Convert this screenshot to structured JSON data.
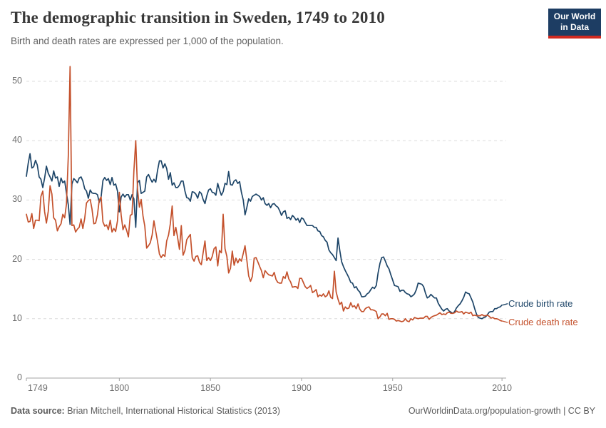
{
  "header": {
    "title": "The demographic transition in Sweden, 1749 to 2010",
    "subtitle": "Birth and death rates are expressed per 1,000 of the population.",
    "logo_line1": "Our World",
    "logo_line2": "in Data",
    "logo_bg_color": "#1d3d63",
    "logo_bar_color": "#d02a20"
  },
  "footer": {
    "source_label": "Data source:",
    "source_text": " Brian Mitchell, International Historical Statistics (2013)",
    "attribution": "OurWorldinData.org/population-growth | CC BY"
  },
  "chart_data": {
    "type": "line",
    "title": "The demographic transition in Sweden, 1749 to 2010",
    "xlabel": "",
    "ylabel": "",
    "x_start": 1749,
    "x_end": 2010,
    "ylim": [
      0,
      50
    ],
    "grid": "dashed-horizontal",
    "legend_position": "right-of-line-ends",
    "x_ticks": [
      1749,
      1800,
      1850,
      1900,
      1950,
      2010
    ],
    "y_ticks": [
      0,
      10,
      20,
      30,
      40,
      50
    ],
    "grid_color": "#dcdcdc",
    "axis_color": "#a3a3a3",
    "tick_text_color": "#6e6e6e",
    "series": [
      {
        "name": "Crude birth rate",
        "color": "#1d4568",
        "values": [
          34,
          36.2,
          37.8,
          35.4,
          35.6,
          36.7,
          35.9,
          33.9,
          33.5,
          32.1,
          33.7,
          35.7,
          34.5,
          33.9,
          33.2,
          34.9,
          33.7,
          33.9,
          32.3,
          33.7,
          32.9,
          33.2,
          31.2,
          29.2,
          25.9,
          32.7,
          33.6,
          33.3,
          32.9,
          33.7,
          33.9,
          33.2,
          31.9,
          31.5,
          30.3,
          31.7,
          31.2,
          31.1,
          31.1,
          30.9,
          29.6,
          30.5,
          33.3,
          33.8,
          33.3,
          33.6,
          32.6,
          33.8,
          32.5,
          32.7,
          31.5,
          28,
          30.5,
          31,
          30.5,
          30.9,
          30.9,
          30,
          30.9,
          30.2,
          25.4,
          32.9,
          33.3,
          31.1,
          31.3,
          31.5,
          33.9,
          34.3,
          33.6,
          33,
          33.5,
          33,
          35,
          36.6,
          36.6,
          35.4,
          36.1,
          35.3,
          33.5,
          34.6,
          32.5,
          32.9,
          32.1,
          32.1,
          32.5,
          33.2,
          33.2,
          31.5,
          30.4,
          30.3,
          29.8,
          31.4,
          31.3,
          31,
          30.3,
          31.4,
          31.1,
          30.1,
          29.4,
          30.7,
          31.7,
          31.9,
          31.3,
          31.2,
          30.8,
          32.8,
          31.7,
          30.8,
          31.4,
          32.8,
          32.6,
          34.8,
          32.6,
          32.5,
          33.2,
          33.4,
          32.8,
          33.1,
          31.3,
          30,
          27.5,
          28.8,
          30.2,
          29.8,
          30.6,
          30.8,
          31,
          30.8,
          30.6,
          30,
          30.4,
          29.4,
          29.1,
          29.4,
          28.7,
          29.3,
          29.4,
          29,
          28.8,
          28.2,
          27.4,
          28,
          28.2,
          26.9,
          27.1,
          26.7,
          27.4,
          27.1,
          26.6,
          26.9,
          26.2,
          27,
          26.8,
          26.2,
          25.7,
          25.7,
          25.7,
          25.7,
          25.4,
          25.4,
          24.8,
          24.7,
          24,
          23.8,
          23.2,
          22.9,
          21.6,
          21.1,
          20.8,
          20.3,
          19.8,
          23.6,
          21.5,
          19.6,
          18.8,
          18.1,
          17.5,
          16.9,
          16.1,
          16,
          15.2,
          15.4,
          14.8,
          14.5,
          13.7,
          13.7,
          13.8,
          14.2,
          14.4,
          14.9,
          15.3,
          15.1,
          15.6,
          17.7,
          19.3,
          20.3,
          20.4,
          19.7,
          18.9,
          18.4,
          17.4,
          16.5,
          15.6,
          15.5,
          15.4,
          14.6,
          14.8,
          14.8,
          14.4,
          14.2,
          14.1,
          13.7,
          13.9,
          14.2,
          14.9,
          16,
          15.9,
          15.8,
          15.4,
          14.3,
          13.5,
          13.7,
          14.1,
          13.8,
          13.5,
          13.5,
          12.6,
          12.1,
          11.6,
          11.3,
          11.6,
          11.7,
          11.3,
          11.1,
          10.9,
          11.2,
          11.8,
          12.2,
          12.5,
          13,
          13.6,
          14.5,
          14.3,
          14.2,
          13.5,
          12.8,
          11.7,
          10.8,
          10.2,
          10.1,
          10,
          10.2,
          10.3,
          10.7,
          11.1,
          11.2,
          11.2,
          11.7,
          11.7,
          11.9,
          12,
          12.3
        ]
      },
      {
        "name": "Crude death rate",
        "color": "#c4512c",
        "values": [
          27.6,
          26.3,
          26.4,
          27.7,
          25.2,
          26.6,
          26.6,
          26.5,
          30.6,
          31.5,
          28,
          26.1,
          28.1,
          32.4,
          31,
          27,
          26.6,
          24.8,
          25.5,
          26,
          27.6,
          27,
          29.3,
          37.4,
          52.5,
          25.7,
          25.8,
          24.6,
          25.1,
          25.4,
          26.8,
          25.2,
          26.9,
          29.5,
          29.9,
          30.1,
          28.5,
          26,
          26.1,
          27.5,
          30,
          30.5,
          26.3,
          25.6,
          25.8,
          25,
          26.6,
          24.6,
          25.2,
          24.7,
          26.5,
          31.3,
          27.5,
          25,
          25.8,
          24.9,
          23.8,
          27.4,
          27.6,
          34.9,
          40,
          31.8,
          28.8,
          30.1,
          27.3,
          25.6,
          21.9,
          22.3,
          22.8,
          24.1,
          26.5,
          24.7,
          23,
          20.9,
          20.3,
          20.8,
          20.5,
          23.1,
          24.1,
          26,
          29,
          24,
          25.4,
          23.7,
          21.7,
          25.7,
          20.7,
          21.5,
          23.3,
          23.8,
          24.2,
          20.3,
          19.7,
          20.5,
          20.6,
          19.5,
          19.1,
          21.1,
          23.1,
          19.8,
          20.3,
          19.8,
          20.5,
          21.8,
          22.1,
          18.9,
          21.5,
          21.1,
          27.6,
          21.8,
          20.5,
          17.7,
          18.5,
          21.4,
          19,
          20.2,
          19.4,
          20.1,
          19.7,
          21,
          22.3,
          19.8,
          17.2,
          16.3,
          17.1,
          20.2,
          20.3,
          19.6,
          18.8,
          18.1,
          16.9,
          18.1,
          17.7,
          17.4,
          17.3,
          17.2,
          17.8,
          16.6,
          16.1,
          16,
          16,
          17.1,
          16.8,
          17.9,
          16.7,
          16.2,
          15.3,
          15.4,
          15.4,
          15.1,
          16.8,
          16.8,
          16.1,
          15.4,
          15.1,
          15.3,
          15.6,
          14.4,
          14.6,
          14.9,
          13.7,
          14,
          13.8,
          14.2,
          13.7,
          13.9,
          14.7,
          13.6,
          13.4,
          18,
          14.5,
          13.3,
          12.4,
          12.8,
          11.3,
          12,
          11.7,
          11.8,
          12.7,
          12,
          12.2,
          11.7,
          12.5,
          11.6,
          11.2,
          11.2,
          11.7,
          11.9,
          12,
          11.5,
          11.5,
          11.4,
          11.2,
          10,
          10.3,
          10.8,
          10.8,
          10.5,
          10.9,
          9.9,
          10,
          10,
          9.9,
          9.6,
          9.7,
          9.6,
          9.5,
          9.6,
          10,
          9.6,
          9.5,
          10,
          9.8,
          10.2,
          10.1,
          10,
          10.1,
          10.1,
          10.1,
          10.4,
          10.4,
          9.9,
          10.2,
          10.4,
          10.5,
          10.6,
          10.8,
          11,
          10.7,
          10.8,
          10.7,
          11,
          11.1,
          10.9,
          10.9,
          11,
          11.3,
          11.1,
          11.1,
          11.2,
          10.8,
          11.1,
          11,
          10.9,
          11.1,
          10.5,
          10.6,
          10.5,
          10.5,
          10.5,
          10.7,
          10.5,
          10.5,
          10.6,
          10.4,
          10.1,
          10.2,
          10,
          10,
          9.9,
          9.7,
          9.6
        ]
      }
    ]
  }
}
